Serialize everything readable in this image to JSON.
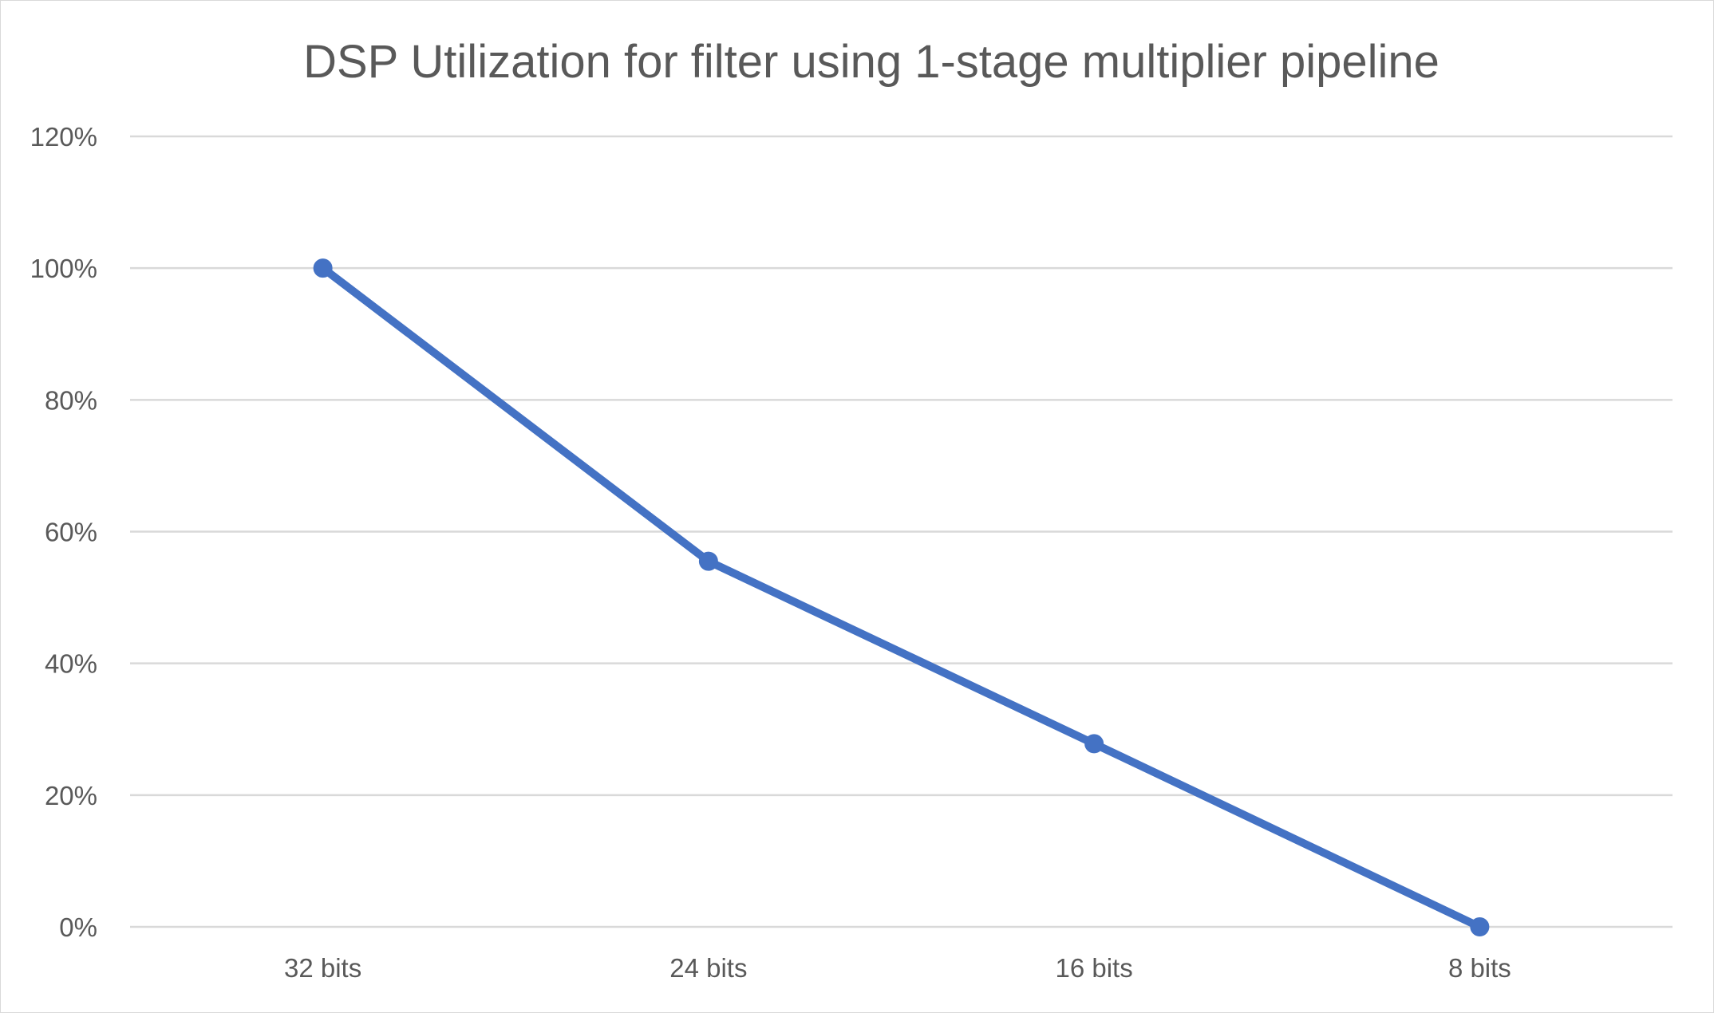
{
  "chart_data": {
    "type": "line",
    "title": "DSP Utilization for filter using 1-stage multiplier pipeline",
    "xlabel": "",
    "ylabel": "",
    "categories": [
      "32 bits",
      "24 bits",
      "16 bits",
      "8 bits"
    ],
    "series": [
      {
        "values": [
          1.0,
          0.555,
          0.278,
          0.0
        ],
        "color": "#4472c4"
      }
    ],
    "ylim": [
      0,
      1.2
    ],
    "y_ticks": [
      0,
      0.2,
      0.4,
      0.6,
      0.8,
      1.0,
      1.2
    ],
    "y_tick_labels": [
      "0%",
      "20%",
      "40%",
      "60%",
      "80%",
      "100%",
      "120%"
    ],
    "grid": true,
    "legend": "none",
    "marker": "circle"
  }
}
